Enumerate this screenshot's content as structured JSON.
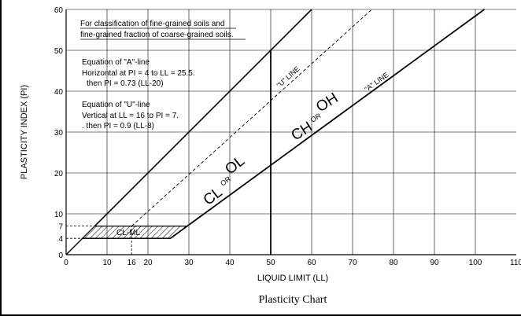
{
  "chart_data": {
    "type": "line",
    "title": "Plasticity Chart",
    "xlabel": "LIQUID LIMIT (LL)",
    "ylabel": "PLASTICITY INDEX (PI)",
    "xlim": [
      0,
      110
    ],
    "ylim": [
      0,
      60
    ],
    "grid": true,
    "x_ticks": [
      {
        "value": 0,
        "label": "0"
      },
      {
        "value": 10,
        "label": "10"
      },
      {
        "value": 16,
        "label": "16"
      },
      {
        "value": 20,
        "label": "20"
      },
      {
        "value": 30,
        "label": "30"
      },
      {
        "value": 40,
        "label": "40"
      },
      {
        "value": 50,
        "label": "50"
      },
      {
        "value": 60,
        "label": "60"
      },
      {
        "value": 70,
        "label": "70"
      },
      {
        "value": 80,
        "label": "80"
      },
      {
        "value": 90,
        "label": "90"
      },
      {
        "value": 100,
        "label": "100"
      },
      {
        "value": 110,
        "label": "110"
      }
    ],
    "y_ticks": [
      {
        "value": 0,
        "label": "0"
      },
      {
        "value": 4,
        "label": "4"
      },
      {
        "value": 7,
        "label": "7"
      },
      {
        "value": 10,
        "label": "10"
      },
      {
        "value": 20,
        "label": "20"
      },
      {
        "value": 30,
        "label": "30"
      },
      {
        "value": 40,
        "label": "40"
      },
      {
        "value": 50,
        "label": "50"
      },
      {
        "value": 60,
        "label": "60"
      }
    ],
    "series": [
      {
        "name": "\"A\" LINE",
        "style": "solid",
        "x": [
          25.5,
          102.2
        ],
        "y": [
          4,
          60
        ]
      },
      {
        "name": "\"U\" LINE",
        "style": "dashed",
        "x": [
          16,
          74.7
        ],
        "y": [
          7,
          60
        ]
      }
    ],
    "a_line_horizontal": {
      "x": [
        4,
        25.5
      ],
      "y": [
        4,
        4
      ]
    },
    "u_line_vertical": {
      "x": [
        16,
        16
      ],
      "y": [
        0,
        7
      ]
    },
    "ll50_divider": {
      "x": [
        50,
        50
      ],
      "y": [
        0,
        50
      ]
    },
    "cl_ml_zone": {
      "label": "CL-ML",
      "polygon": [
        [
          4,
          4
        ],
        [
          25.5,
          4
        ],
        [
          29.6,
          7
        ],
        [
          7,
          7
        ]
      ]
    },
    "zones": [
      {
        "label_main1": "CL",
        "label_or": "OR",
        "label_main2": "OL"
      },
      {
        "label_main1": "CH",
        "label_or": "OR",
        "label_main2": "OH"
      }
    ],
    "annotations": {
      "classification_line1": "For classification of fine-grained soils and",
      "classification_line2": "fine-grained fraction of coarse-grained soils.",
      "a_eq_title": "Equation of \"A\"-line",
      "a_eq_line1": "Horizontal at PI = 4 to LL = 25.5.",
      "a_eq_line2": "then PI = 0.73 (LL-20)",
      "u_eq_title": "Equation of \"U\"-line",
      "u_eq_line1": "Vertical at LL = 16 to PI = 7.",
      "u_eq_line2": ". then PI = 0.9 (LL-8)"
    },
    "colors": {
      "lines": "#000000",
      "grid": "#000000"
    }
  }
}
